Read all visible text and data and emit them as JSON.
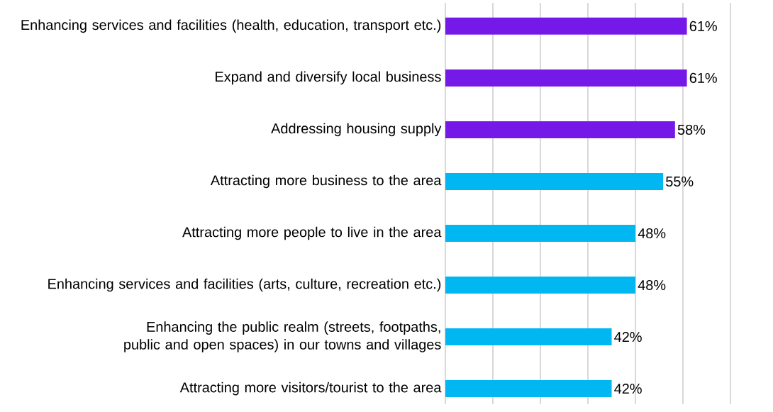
{
  "chart_data": {
    "type": "bar",
    "orientation": "horizontal",
    "categories": [
      "Enhancing services and facilities (health, education, transport etc.)",
      "Expand and diversify local business",
      "Addressing housing supply",
      "Attracting more business to the area",
      "Attracting more people to live in the area",
      "Enhancing services and facilities (arts, culture, recreation etc.)",
      "Enhancing the public realm (streets, footpaths, public and open spaces) in our towns and villages",
      "Attracting more visitors/tourist to the area"
    ],
    "values": [
      61,
      61,
      58,
      55,
      48,
      48,
      42,
      42
    ],
    "colors": [
      "#7519e8",
      "#7519e8",
      "#7519e8",
      "#00b7f1",
      "#00b7f1",
      "#00b7f1",
      "#00b7f1",
      "#00b7f1"
    ],
    "value_labels": [
      "61%",
      "61%",
      "58%",
      "55%",
      "48%",
      "48%",
      "42%",
      "42%"
    ],
    "xlim": [
      0,
      72
    ],
    "xticks": [
      {
        "value": 0,
        "label": null
      },
      {
        "value": 12,
        "label": null
      },
      {
        "value": 24,
        "label": null
      },
      {
        "value": 36,
        "label": null
      },
      {
        "value": 48,
        "label": null
      },
      {
        "value": 60,
        "label": null
      },
      {
        "value": 72,
        "label": null
      }
    ],
    "tick_labels": "y",
    "grid": "x"
  }
}
